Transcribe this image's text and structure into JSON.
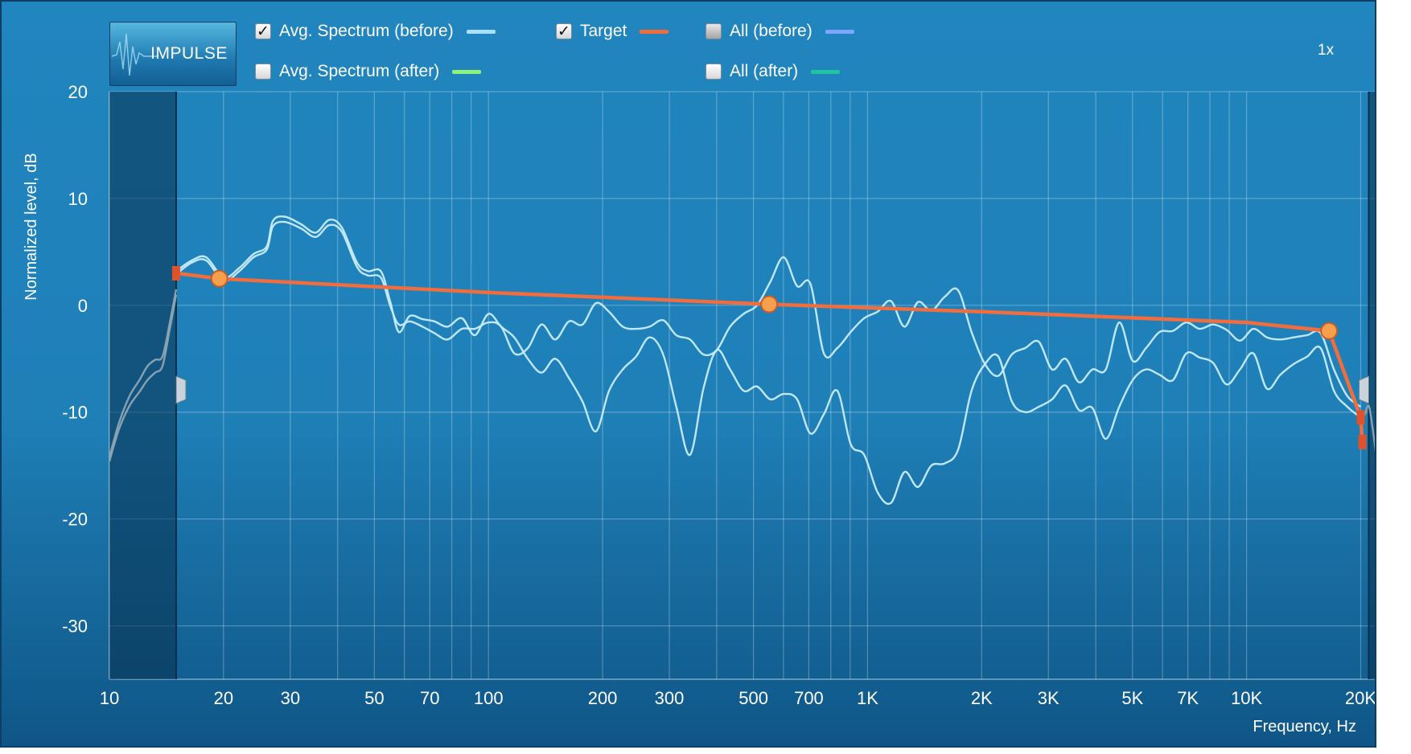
{
  "toolbar": {
    "impulse_label": "IMPULSE",
    "zoom_label": "1x"
  },
  "legend": [
    {
      "label": "Avg. Spectrum (before)",
      "checked": true,
      "color": "#a9e0ff"
    },
    {
      "label": "Target",
      "checked": true,
      "color": "#f26d3d"
    },
    {
      "label": "All (before)",
      "checked": false,
      "color": "#7ea6ff"
    },
    {
      "label": "Avg. Spectrum (after)",
      "checked": false,
      "color": "#8cf27a"
    },
    {
      "label": "All (after)",
      "checked": false,
      "color": "#1fc4a0"
    }
  ],
  "check_mark": "✓",
  "chart_data": {
    "type": "line",
    "xlabel": "Frequency, Hz",
    "ylabel": "Normalized level, dB",
    "x_scale": "log",
    "xlim": [
      10,
      22000
    ],
    "ylim": [
      -35,
      20
    ],
    "grid": true,
    "x_ticks": [
      {
        "v": 10,
        "label": "10"
      },
      {
        "v": 20,
        "label": "20"
      },
      {
        "v": 30,
        "label": "30"
      },
      {
        "v": 50,
        "label": "50"
      },
      {
        "v": 70,
        "label": "70"
      },
      {
        "v": 100,
        "label": "100"
      },
      {
        "v": 200,
        "label": "200"
      },
      {
        "v": 300,
        "label": "300"
      },
      {
        "v": 500,
        "label": "500"
      },
      {
        "v": 700,
        "label": "700"
      },
      {
        "v": 1000,
        "label": "1K"
      },
      {
        "v": 2000,
        "label": "2K"
      },
      {
        "v": 3000,
        "label": "3K"
      },
      {
        "v": 5000,
        "label": "5K"
      },
      {
        "v": 7000,
        "label": "7K"
      },
      {
        "v": 10000,
        "label": "10K"
      },
      {
        "v": 20000,
        "label": "20K"
      }
    ],
    "y_ticks": [
      {
        "v": 20,
        "label": "20"
      },
      {
        "v": 10,
        "label": "10"
      },
      {
        "v": 0,
        "label": "0"
      },
      {
        "v": -10,
        "label": "-10"
      },
      {
        "v": -20,
        "label": "-20"
      },
      {
        "v": -30,
        "label": "-30"
      }
    ],
    "excluded_range_low": [
      10,
      15
    ],
    "excluded_range_high": [
      21000,
      22000
    ],
    "series": [
      {
        "name": "Target",
        "color": "#f26d3d",
        "x": [
          15,
          19.5,
          100,
          550,
          2000,
          10000,
          16500,
          20000,
          20200
        ],
        "y": [
          3,
          2.5,
          1.2,
          0.1,
          -0.6,
          -1.6,
          -2.4,
          -10.5,
          -12.8
        ],
        "control_points": [
          {
            "x": 19.5,
            "y": 2.5
          },
          {
            "x": 550,
            "y": 0.1
          },
          {
            "x": 16500,
            "y": -2.4
          }
        ],
        "handles": [
          {
            "x": 15,
            "y": 3
          },
          {
            "x": 20000,
            "y": -10.5
          },
          {
            "x": 20200,
            "y": -12.8
          }
        ]
      },
      {
        "color": "#c8ecff",
        "x": [
          15,
          16.5,
          18,
          20,
          22,
          24,
          26,
          27,
          29,
          32,
          35,
          38,
          41,
          45,
          48,
          52,
          55,
          58,
          62,
          67,
          72,
          78,
          85,
          92,
          100,
          108,
          117,
          127,
          138,
          150,
          163,
          177,
          192,
          208,
          226,
          245,
          266,
          289,
          313,
          340,
          369,
          400,
          434,
          471,
          511,
          554,
          601,
          652,
          707,
          767,
          832,
          903,
          980,
          1063,
          1153,
          1251,
          1358,
          1473,
          1598,
          1734,
          1881,
          2041,
          2214,
          2402,
          2606,
          2828,
          3068,
          3329,
          3612,
          3918,
          4251,
          4612,
          5004,
          5429,
          5891,
          6391,
          6934,
          7523,
          8162,
          8855,
          9607,
          10423,
          11309,
          12270,
          13312,
          14443,
          15670,
          17001,
          18444,
          20000
        ],
        "y": [
          3.2,
          4.2,
          4.5,
          2.6,
          3.5,
          4.8,
          5.5,
          7.9,
          8.3,
          7.6,
          6.8,
          8,
          7.3,
          4,
          3.2,
          3.2,
          0.4,
          -2.5,
          -1,
          -1.3,
          -1.5,
          -2,
          -1.2,
          -2.8,
          -0.8,
          -2,
          -3,
          -5,
          -6.3,
          -5,
          -6.8,
          -9,
          -11.8,
          -8,
          -6,
          -4.8,
          -3,
          -4.6,
          -9.5,
          -14,
          -7.8,
          -4.2,
          -6,
          -8,
          -7.6,
          -8.8,
          -8.3,
          -8.8,
          -12,
          -10.2,
          -8,
          -13,
          -14,
          -17.5,
          -18.5,
          -15.6,
          -17,
          -15,
          -14.8,
          -13.5,
          -8,
          -5.5,
          -4.8,
          -9,
          -10,
          -9.5,
          -8.8,
          -7.5,
          -9.8,
          -9.6,
          -12.5,
          -9.5,
          -7,
          -6,
          -6.5,
          -7,
          -4.5,
          -4.9,
          -5.4,
          -7.4,
          -6,
          -4.5,
          -7.8,
          -6.5,
          -5.5,
          -4.8,
          -4,
          -8,
          -9.5,
          -10.5
        ]
      },
      {
        "color": "#c8ecff",
        "x": [
          15,
          16.5,
          18,
          20,
          22,
          24,
          26,
          27,
          29,
          32,
          35,
          38,
          41,
          45,
          48,
          52,
          55,
          58,
          62,
          67,
          72,
          78,
          85,
          92,
          100,
          108,
          117,
          127,
          138,
          150,
          163,
          177,
          192,
          208,
          226,
          245,
          266,
          289,
          313,
          340,
          369,
          400,
          434,
          471,
          511,
          554,
          601,
          652,
          707,
          767,
          832,
          903,
          980,
          1063,
          1153,
          1251,
          1358,
          1473,
          1598,
          1734,
          1881,
          2041,
          2214,
          2402,
          2606,
          2828,
          3068,
          3329,
          3612,
          3918,
          4251,
          4612,
          5004,
          5429,
          5891,
          6391,
          6934,
          7523,
          8162,
          8855,
          9607,
          10423,
          11309,
          12270,
          13312,
          14443,
          15670,
          17001,
          18444,
          20000
        ],
        "y": [
          2.9,
          4,
          4.2,
          2.3,
          3.2,
          4.5,
          5.2,
          7.4,
          7.8,
          7.2,
          6.4,
          7.5,
          6.9,
          3.6,
          2.8,
          2.6,
          0,
          -1.8,
          -1.5,
          -2,
          -2.6,
          -3.2,
          -2.2,
          -2.2,
          -1.6,
          -2,
          -4.5,
          -4,
          -1.8,
          -3.2,
          -1.5,
          -1.8,
          0.2,
          -0.6,
          -2,
          -2.2,
          -2,
          -1.4,
          -2.8,
          -3.2,
          -4.6,
          -4.2,
          -2,
          -0.8,
          0,
          2.2,
          4.5,
          1.8,
          2,
          -4.5,
          -4,
          -2.5,
          -1.2,
          -0.6,
          0.4,
          -2,
          0.3,
          -0.5,
          0.8,
          1.4,
          -2.5,
          -5.5,
          -6.6,
          -4.6,
          -4,
          -3.4,
          -6,
          -5,
          -7.2,
          -6,
          -6,
          -1.6,
          -5.2,
          -4,
          -2.5,
          -2.4,
          -1.6,
          -2.2,
          -1.8,
          -2.3,
          -3.3,
          -2.2,
          -3,
          -3.2,
          -3,
          -2.8,
          -2.6,
          -6,
          -8.5,
          -9.5
        ]
      },
      {
        "color": "#8da6b5",
        "x": [
          10,
          10.6,
          11.3,
          12,
          12.6,
          13.2,
          13.8,
          14.4,
          15
        ],
        "y": [
          -14.2,
          -11,
          -8.5,
          -7,
          -5.7,
          -5.1,
          -4.8,
          -1.8,
          1.5
        ]
      },
      {
        "color": "#8da6b5",
        "x": [
          10,
          10.6,
          11.3,
          12,
          12.6,
          13.2,
          13.8,
          14.4,
          15
        ],
        "y": [
          -14.6,
          -11.6,
          -9.4,
          -8.1,
          -7,
          -6.3,
          -5.7,
          -2.4,
          1
        ]
      },
      {
        "color": "#8da6b5",
        "x": [
          20000,
          20500,
          21000,
          21500,
          22000
        ],
        "y": [
          -10.5,
          -10.2,
          -9.4,
          -11.5,
          -14.2
        ]
      }
    ]
  }
}
